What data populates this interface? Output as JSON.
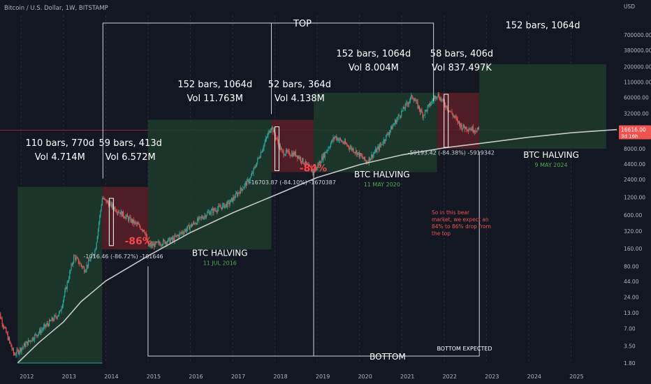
{
  "header": {
    "symbol": "Bitcoin / U.S. Dollar, 1W, BITSTAMP"
  },
  "price_tag": {
    "price": "16616.00",
    "countdown": "3d 16h"
  },
  "colors": {
    "background": "#131722",
    "green_box": "#1f3b2b",
    "red_box": "#5a1e26",
    "candle_up": "#26a69a",
    "candle_down": "#ef5350",
    "curve": "#c8c8c8",
    "annotation_text": "#ffffff",
    "pct_red": "#f0484d",
    "date_green": "#4caf50",
    "note_red": "#ef5350"
  },
  "chart_data": {
    "type": "candlestick",
    "y_scale": "log",
    "ylim": [
      1.8,
      1500000
    ],
    "x_range": [
      "2011-06",
      "2026-02"
    ],
    "x_ticks": [
      "2012",
      "2013",
      "2014",
      "2015",
      "2016",
      "2017",
      "2018",
      "2019",
      "2020",
      "2021",
      "2022",
      "2023",
      "2024",
      "2025"
    ],
    "y_ticks": [
      "USD",
      "700000.00",
      "380000.00",
      "200000.00",
      "110000.00",
      "60000.00",
      "32000.00",
      "16616.00",
      "8000.00",
      "4400.00",
      "2400.00",
      "1200.00",
      "600.00",
      "320.00",
      "160.00",
      "80.00",
      "44.00",
      "24.00",
      "13.00",
      "7.00",
      "3.50",
      "1.80"
    ],
    "price_series": [
      [
        "2011-06",
        17
      ],
      [
        "2011-11",
        2.5
      ],
      [
        "2012-06",
        6
      ],
      [
        "2012-12",
        13
      ],
      [
        "2013-04",
        120
      ],
      [
        "2013-07",
        70
      ],
      [
        "2013-10",
        150
      ],
      [
        "2013-12",
        1150
      ],
      [
        "2014-06",
        600
      ],
      [
        "2014-12",
        330
      ],
      [
        "2015-01",
        175
      ],
      [
        "2015-08",
        230
      ],
      [
        "2016-06",
        650
      ],
      [
        "2016-12",
        950
      ],
      [
        "2017-06",
        2500
      ],
      [
        "2017-12",
        19600
      ],
      [
        "2018-03",
        7000
      ],
      [
        "2018-07",
        6500
      ],
      [
        "2018-12",
        3200
      ],
      [
        "2019-06",
        13000
      ],
      [
        "2019-12",
        7200
      ],
      [
        "2020-03",
        4800
      ],
      [
        "2020-07",
        9200
      ],
      [
        "2020-12",
        28000
      ],
      [
        "2021-04",
        64000
      ],
      [
        "2021-07",
        30000
      ],
      [
        "2021-11",
        69000
      ],
      [
        "2022-06",
        19000
      ],
      [
        "2022-11",
        16616
      ]
    ],
    "support_curve": [
      [
        "2011-12",
        1.8
      ],
      [
        "2012-06",
        4
      ],
      [
        "2013-01",
        9
      ],
      [
        "2013-06",
        20
      ],
      [
        "2014-01",
        45
      ],
      [
        "2015-01",
        120
      ],
      [
        "2016-01",
        300
      ],
      [
        "2017-01",
        650
      ],
      [
        "2018-01",
        1300
      ],
      [
        "2019-01",
        2600
      ],
      [
        "2020-01",
        4300
      ],
      [
        "2021-01",
        6300
      ],
      [
        "2022-01",
        8300
      ],
      [
        "2023-01",
        10200
      ],
      [
        "2024-01",
        12600
      ],
      [
        "2025-01",
        15000
      ],
      [
        "2026-02",
        17000
      ]
    ],
    "cycle_boxes": [
      {
        "kind": "green",
        "from": "2011-12",
        "to": "2013-12",
        "low": 1.8,
        "high": 1800
      },
      {
        "kind": "red",
        "from": "2013-12",
        "to": "2015-01",
        "low": 155,
        "high": 1800
      },
      {
        "kind": "green",
        "from": "2015-01",
        "to": "2017-12",
        "low": 155,
        "high": 25000
      },
      {
        "kind": "red",
        "from": "2017-12",
        "to": "2018-12",
        "low": 3200,
        "high": 25000
      },
      {
        "kind": "green",
        "from": "2018-12",
        "to": "2021-11",
        "low": 3200,
        "high": 72000
      },
      {
        "kind": "red",
        "from": "2021-11",
        "to": "2022-11",
        "low": 8000,
        "high": 72000
      },
      {
        "kind": "green",
        "from": "2022-11",
        "to": "2025-11",
        "low": 8000,
        "high": 220000
      }
    ],
    "annotations": [
      {
        "lines": [
          "110 bars, 770d",
          "Vol 4.714M"
        ],
        "x": "2012-12",
        "y": 9000
      },
      {
        "lines": [
          "59 bars, 413d",
          "Vol 6.572M"
        ],
        "x": "2014-08",
        "y": 9000
      },
      {
        "lines": [
          "152 bars, 1064d",
          "Vol 11.763M"
        ],
        "x": "2016-08",
        "y": 90000
      },
      {
        "lines": [
          "52 bars, 364d",
          "Vol 4.138M"
        ],
        "x": "2018-08",
        "y": 90000
      },
      {
        "lines": [
          "152 bars, 1064d",
          "Vol 8.004M"
        ],
        "x": "2020-05",
        "y": 300000
      },
      {
        "lines": [
          "58 bars, 406d",
          "Vol 837.497K"
        ],
        "x": "2022-06",
        "y": 300000
      },
      {
        "lines": [
          "152 bars, 1064d"
        ],
        "x": "2024-05",
        "y": 900000
      }
    ],
    "drawdowns": [
      {
        "label": "-86%",
        "x": "2014-04"
      },
      {
        "label": "-84%",
        "x": "2018-06"
      }
    ],
    "low_labels": [
      {
        "text": "-1016.46 (-86.72%) -101646",
        "x": "2014-06",
        "y": 110
      },
      {
        "text": "-16703.87 (-84.10%) -1670387",
        "x": "2018-06",
        "y": 2000
      },
      {
        "text": "-59193.42 (-84.38%) -5919342",
        "x": "2022-03",
        "y": 6400
      }
    ],
    "halvings": [
      {
        "title": "BTC HALVING",
        "date": "11 JUL 2016",
        "x": "2016-07"
      },
      {
        "title": "BTC HALVING",
        "date": "11 MAY 2020",
        "x": "2020-05"
      },
      {
        "title": "BTC HALVING",
        "date": "9 MAY 2024",
        "x": "2024-05"
      }
    ],
    "top_label": "TOP",
    "bottom_label": "BOTTOM",
    "bottom_expected_label": "BOTTOM EXPECTED",
    "note": [
      "So in this bear",
      "market, we expect an",
      "84% to 86% drop from",
      "the top"
    ]
  }
}
